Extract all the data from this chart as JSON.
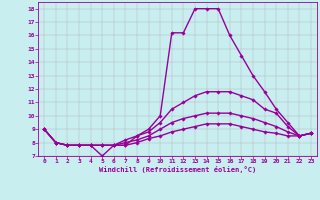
{
  "xlabel": "Windchill (Refroidissement éolien,°C)",
  "background_color": "#c8eef0",
  "line_color": "#990099",
  "grid_color": "#b0b0b0",
  "ylim": [
    7,
    18.5
  ],
  "xlim": [
    -0.5,
    23.5
  ],
  "yticks": [
    7,
    8,
    9,
    10,
    11,
    12,
    13,
    14,
    15,
    16,
    17,
    18
  ],
  "xticks": [
    0,
    1,
    2,
    3,
    4,
    5,
    6,
    7,
    8,
    9,
    10,
    11,
    12,
    13,
    14,
    15,
    16,
    17,
    18,
    19,
    20,
    21,
    22,
    23
  ],
  "series": [
    {
      "x": [
        0,
        1,
        2,
        3,
        4,
        5,
        6,
        7,
        8,
        9,
        10,
        11,
        12,
        13,
        14,
        15,
        16,
        17,
        18,
        19,
        20,
        21,
        22,
        23
      ],
      "y": [
        9,
        8,
        7.8,
        7.8,
        7.8,
        7,
        7.8,
        7.8,
        8.5,
        9,
        10,
        16.2,
        16.2,
        18,
        18,
        18,
        16,
        14.5,
        13,
        11.8,
        10.5,
        9.5,
        8.5,
        8.7
      ],
      "marker": "D",
      "markersize": 1.8,
      "linewidth": 1.0
    },
    {
      "x": [
        0,
        1,
        2,
        3,
        4,
        5,
        6,
        7,
        8,
        9,
        10,
        11,
        12,
        13,
        14,
        15,
        16,
        17,
        18,
        19,
        20,
        21,
        22,
        23
      ],
      "y": [
        9,
        8,
        7.8,
        7.8,
        7.8,
        7.8,
        7.8,
        8.2,
        8.5,
        8.8,
        9.5,
        10.5,
        11.0,
        11.5,
        11.8,
        11.8,
        11.8,
        11.5,
        11.2,
        10.5,
        10.2,
        9.2,
        8.5,
        8.7
      ],
      "marker": "D",
      "markersize": 1.8,
      "linewidth": 1.0
    },
    {
      "x": [
        0,
        1,
        2,
        3,
        4,
        5,
        6,
        7,
        8,
        9,
        10,
        11,
        12,
        13,
        14,
        15,
        16,
        17,
        18,
        19,
        20,
        21,
        22,
        23
      ],
      "y": [
        9,
        8,
        7.8,
        7.8,
        7.8,
        7.8,
        7.8,
        8.0,
        8.2,
        8.5,
        9.0,
        9.5,
        9.8,
        10.0,
        10.2,
        10.2,
        10.2,
        10.0,
        9.8,
        9.5,
        9.2,
        8.8,
        8.5,
        8.7
      ],
      "marker": "D",
      "markersize": 1.8,
      "linewidth": 1.0
    },
    {
      "x": [
        0,
        1,
        2,
        3,
        4,
        5,
        6,
        7,
        8,
        9,
        10,
        11,
        12,
        13,
        14,
        15,
        16,
        17,
        18,
        19,
        20,
        21,
        22,
        23
      ],
      "y": [
        9,
        8,
        7.8,
        7.8,
        7.8,
        7.8,
        7.8,
        7.8,
        8.0,
        8.3,
        8.5,
        8.8,
        9.0,
        9.2,
        9.4,
        9.4,
        9.4,
        9.2,
        9.0,
        8.8,
        8.7,
        8.5,
        8.5,
        8.7
      ],
      "marker": "D",
      "markersize": 1.8,
      "linewidth": 1.0
    }
  ]
}
